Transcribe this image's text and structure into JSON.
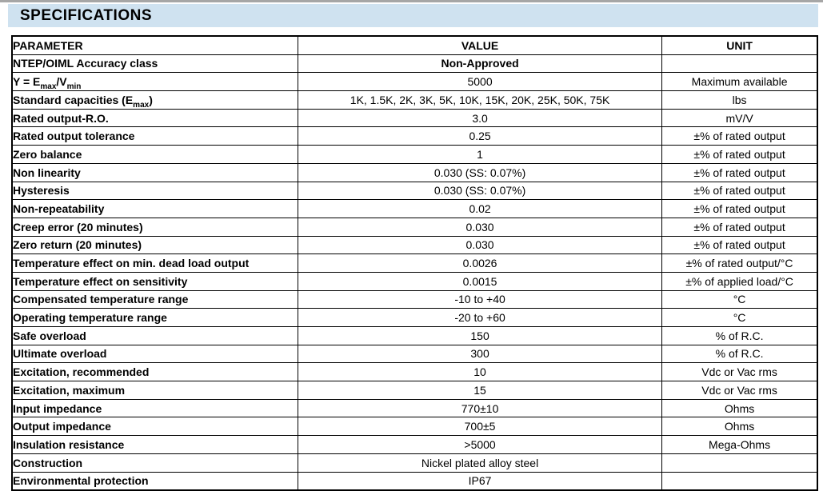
{
  "page": {
    "title": "SPECIFICATIONS"
  },
  "colors": {
    "band_background": "#cfe2f0",
    "table_border": "#000000",
    "top_line": "#a6a6a6",
    "text": "#000000"
  },
  "table": {
    "headers": [
      "PARAMETER",
      "VALUE",
      "UNIT"
    ],
    "rows": [
      {
        "parameter": "NTEP/OIML Accuracy class",
        "value": "Non-Approved",
        "unit": "",
        "value_bold": true
      },
      {
        "parameter": "Y = E_{max}/V_{min}",
        "value": "5000",
        "unit": "Maximum available"
      },
      {
        "parameter": "Standard capacities (E_{max})",
        "value": "1K, 1.5K, 2K, 3K, 5K, 10K, 15K, 20K, 25K, 50K, 75K",
        "unit": "lbs"
      },
      {
        "parameter": "Rated output-R.O.",
        "value": "3.0",
        "unit": "mV/V"
      },
      {
        "parameter": "Rated output tolerance",
        "value": "0.25",
        "unit": "±% of rated output"
      },
      {
        "parameter": "Zero balance",
        "value": "1",
        "unit": "±% of rated output"
      },
      {
        "parameter": "Non linearity",
        "value": "0.030 (SS: 0.07%)",
        "unit": "±% of rated output"
      },
      {
        "parameter": "Hysteresis",
        "value": "0.030 (SS: 0.07%)",
        "unit": "±% of rated output"
      },
      {
        "parameter": "Non-repeatability",
        "value": "0.02",
        "unit": "±% of rated output"
      },
      {
        "parameter": "Creep error (20 minutes)",
        "value": "0.030",
        "unit": "±% of rated output"
      },
      {
        "parameter": "Zero return (20 minutes)",
        "value": "0.030",
        "unit": "±% of rated output"
      },
      {
        "parameter": "Temperature effect on min. dead load output",
        "value": "0.0026",
        "unit": "±% of rated output/°C"
      },
      {
        "parameter": "Temperature effect on sensitivity",
        "value": "0.0015",
        "unit": "±% of applied load/°C"
      },
      {
        "parameter": "Compensated temperature range",
        "value": "-10 to +40",
        "unit": "°C"
      },
      {
        "parameter": "Operating temperature range",
        "value": "-20 to +60",
        "unit": "°C"
      },
      {
        "parameter": "Safe overload",
        "value": "150",
        "unit": "% of R.C."
      },
      {
        "parameter": "Ultimate overload",
        "value": "300",
        "unit": "% of R.C."
      },
      {
        "parameter": "Excitation, recommended",
        "value": "10",
        "unit": "Vdc or Vac rms"
      },
      {
        "parameter": "Excitation, maximum",
        "value": "15",
        "unit": "Vdc or Vac rms"
      },
      {
        "parameter": "Input impedance",
        "value": "770±10",
        "unit": "Ohms"
      },
      {
        "parameter": "Output impedance",
        "value": "700±5",
        "unit": "Ohms"
      },
      {
        "parameter": "Insulation resistance",
        "value": ">5000",
        "unit": "Mega-Ohms"
      },
      {
        "parameter": "Construction",
        "value": "Nickel plated alloy steel",
        "unit": ""
      },
      {
        "parameter": "Environmental protection",
        "value": "IP67",
        "unit": ""
      }
    ]
  }
}
